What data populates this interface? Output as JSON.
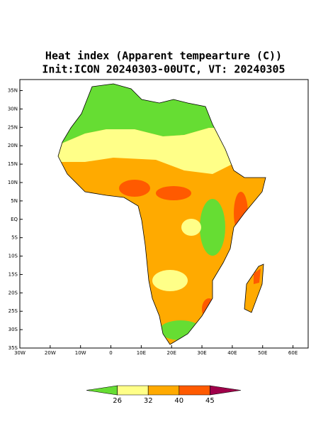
{
  "chart_data": {
    "type": "map",
    "title": "Heat index (Apparent tempearture (C))",
    "subtitle": "Init:ICON 20240303-00UTC, VT: 20240305",
    "xlim": [
      -30,
      65
    ],
    "ylim": [
      -35,
      38
    ],
    "xticks": [
      {
        "value": -30,
        "label": "30W"
      },
      {
        "value": -20,
        "label": "20W"
      },
      {
        "value": -10,
        "label": "10W"
      },
      0,
      {
        "value": 10,
        "label": "10E"
      },
      {
        "value": 20,
        "label": "20E"
      },
      {
        "value": 30,
        "label": "30E"
      },
      {
        "value": 40,
        "label": "40E"
      },
      {
        "value": 50,
        "label": "50E"
      },
      {
        "value": 60,
        "label": "60E"
      }
    ],
    "yticks": [
      {
        "value": 35,
        "label": "35N"
      },
      {
        "value": 30,
        "label": "30N"
      },
      {
        "value": 25,
        "label": "25N"
      },
      {
        "value": 20,
        "label": "20N"
      },
      {
        "value": 15,
        "label": "15N"
      },
      {
        "value": 10,
        "label": "10N"
      },
      {
        "value": 5,
        "label": "5N"
      },
      {
        "value": 0,
        "label": "EQ"
      },
      {
        "value": -5,
        "label": "5S"
      },
      {
        "value": -10,
        "label": "10S"
      },
      {
        "value": -15,
        "label": "15S"
      },
      {
        "value": -20,
        "label": "20S"
      },
      {
        "value": -25,
        "label": "25S"
      },
      {
        "value": -30,
        "label": "30S"
      },
      {
        "value": -35,
        "label": "35S"
      }
    ],
    "colorbar": {
      "ticks": [
        26,
        32,
        40,
        45
      ],
      "colors": [
        "#66dd33",
        "#ffff88",
        "#ffaa00",
        "#ff5a00",
        "#a0004a"
      ]
    }
  }
}
